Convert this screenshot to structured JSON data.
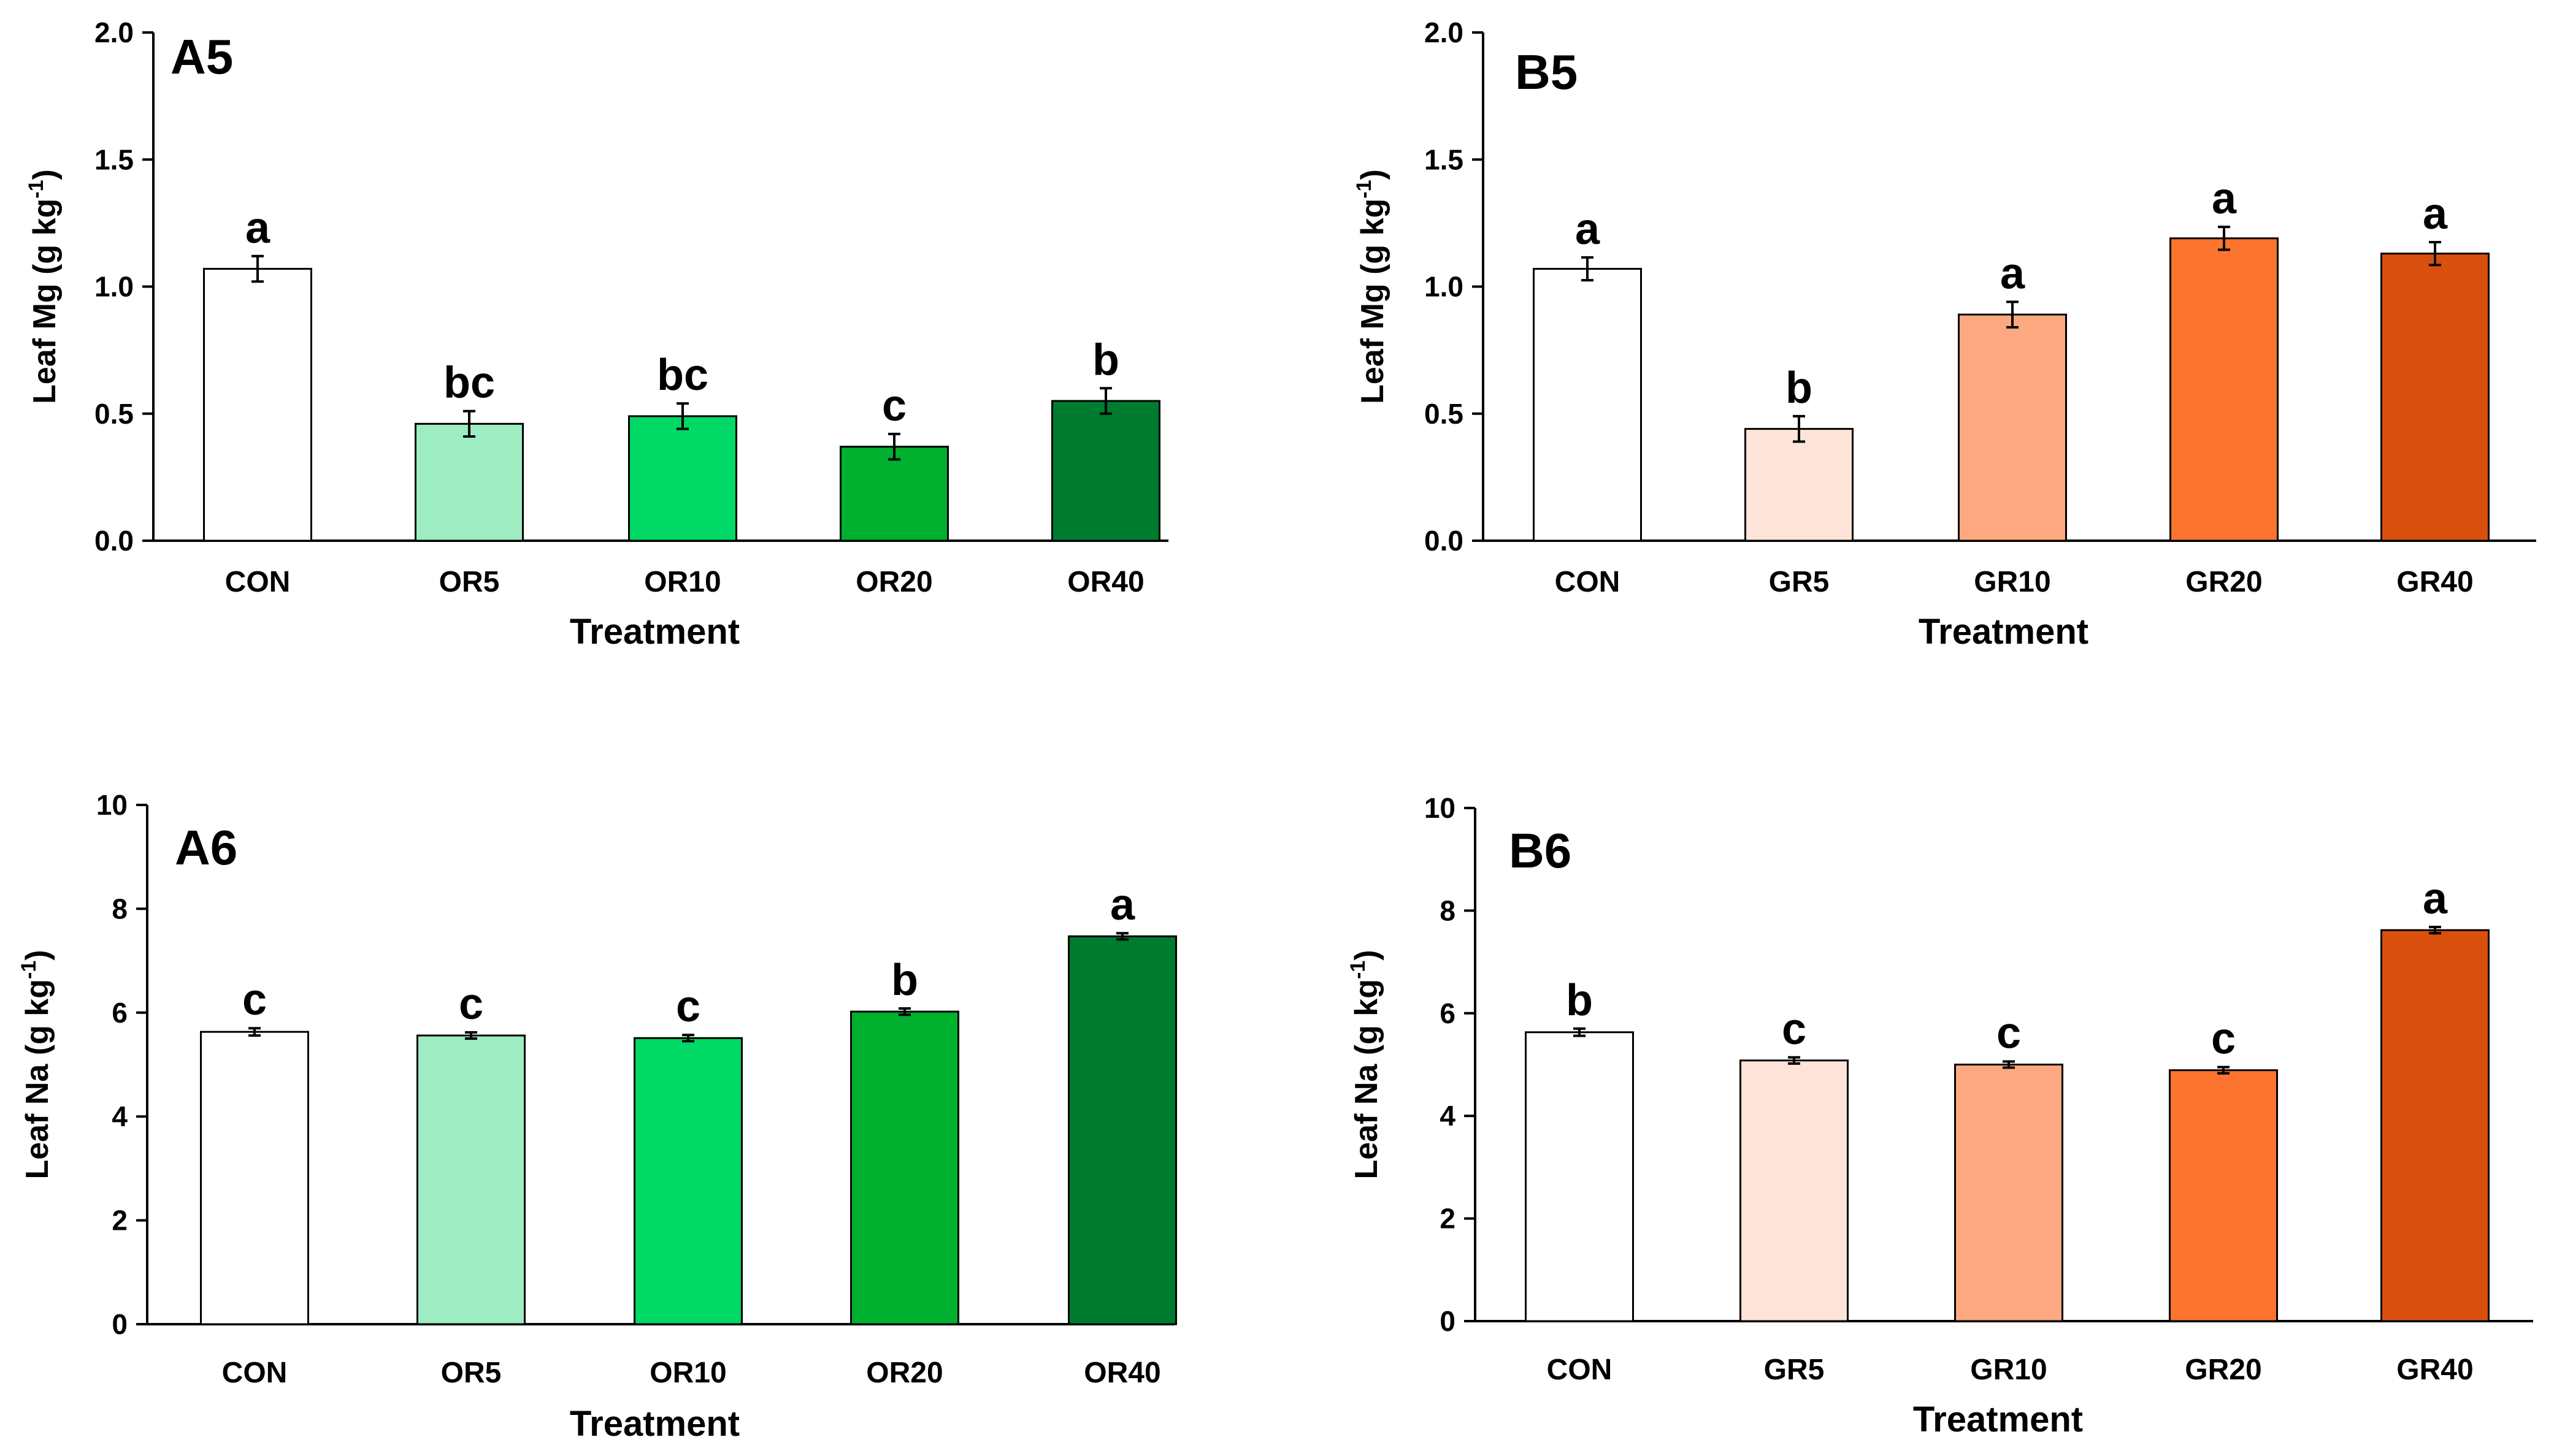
{
  "chart_data": [
    {
      "type": "bar",
      "panel": "A5",
      "categories": [
        "CON",
        "OR5",
        "OR10",
        "OR20",
        "OR40"
      ],
      "values": [
        1.07,
        0.46,
        0.49,
        0.37,
        0.55
      ],
      "errors": [
        0.05,
        0.05,
        0.05,
        0.05,
        0.05
      ],
      "letters": [
        "a",
        "bc",
        "bc",
        "c",
        "b"
      ],
      "colors": [
        "#ffffff",
        "#9eecc1",
        "#00d966",
        "#00b02f",
        "#007c30"
      ],
      "xlabel": "Treatment",
      "ylabel": "Leaf Mg (g kg",
      "ylabel_sup": "-1",
      "ylabel_tail": ")",
      "ylim": [
        0,
        2.0
      ],
      "yticks": [
        0.0,
        0.5,
        1.0,
        1.5,
        2.0
      ],
      "ytick_labels": [
        "0.0",
        "0.5",
        "1.0",
        "1.5",
        "2.0"
      ]
    },
    {
      "type": "bar",
      "panel": "B5",
      "categories": [
        "CON",
        "GR5",
        "GR10",
        "GR20",
        "GR40"
      ],
      "values": [
        1.07,
        0.44,
        0.89,
        1.19,
        1.13
      ],
      "errors": [
        0.045,
        0.05,
        0.05,
        0.045,
        0.045
      ],
      "letters": [
        "a",
        "b",
        "a",
        "a",
        "a"
      ],
      "colors": [
        "#ffffff",
        "#fee4d8",
        "#fca981",
        "#fd7430",
        "#d9500e"
      ],
      "xlabel": "Treatment",
      "ylabel": "Leaf Mg (g kg",
      "ylabel_sup": "-1",
      "ylabel_tail": ")",
      "ylim": [
        0,
        2.0
      ],
      "yticks": [
        0.0,
        0.5,
        1.0,
        1.5,
        2.0
      ],
      "ytick_labels": [
        "0.0",
        "0.5",
        "1.0",
        "1.5",
        "2.0"
      ]
    },
    {
      "type": "bar",
      "panel": "A6",
      "categories": [
        "CON",
        "OR5",
        "OR10",
        "OR20",
        "OR40"
      ],
      "values": [
        5.63,
        5.56,
        5.51,
        6.02,
        7.47
      ],
      "errors": [
        0.07,
        0.06,
        0.06,
        0.06,
        0.06
      ],
      "letters": [
        "c",
        "c",
        "c",
        "b",
        "a"
      ],
      "colors": [
        "#ffffff",
        "#9eecc1",
        "#00d966",
        "#00b02f",
        "#007c30"
      ],
      "xlabel": "Treatment",
      "ylabel": "Leaf Na (g kg",
      "ylabel_sup": "-1",
      "ylabel_tail": ")",
      "ylim": [
        0,
        10
      ],
      "yticks": [
        0,
        2,
        4,
        6,
        8,
        10
      ],
      "ytick_labels": [
        "0",
        "2",
        "4",
        "6",
        "8",
        "10"
      ]
    },
    {
      "type": "bar",
      "panel": "B6",
      "categories": [
        "CON",
        "GR5",
        "GR10",
        "GR20",
        "GR40"
      ],
      "values": [
        5.63,
        5.08,
        5.0,
        4.89,
        7.62
      ],
      "errors": [
        0.07,
        0.06,
        0.06,
        0.06,
        0.06
      ],
      "letters": [
        "b",
        "c",
        "c",
        "c",
        "a"
      ],
      "colors": [
        "#ffffff",
        "#fee4d8",
        "#fca981",
        "#fd7430",
        "#d9500e"
      ],
      "xlabel": "Treatment",
      "ylabel": "Leaf Na (g kg",
      "ylabel_sup": "-1",
      "ylabel_tail": ")",
      "ylim": [
        0,
        10
      ],
      "yticks": [
        0,
        2,
        4,
        6,
        8,
        10
      ],
      "ytick_labels": [
        "0",
        "2",
        "4",
        "6",
        "8",
        "10"
      ]
    }
  ]
}
